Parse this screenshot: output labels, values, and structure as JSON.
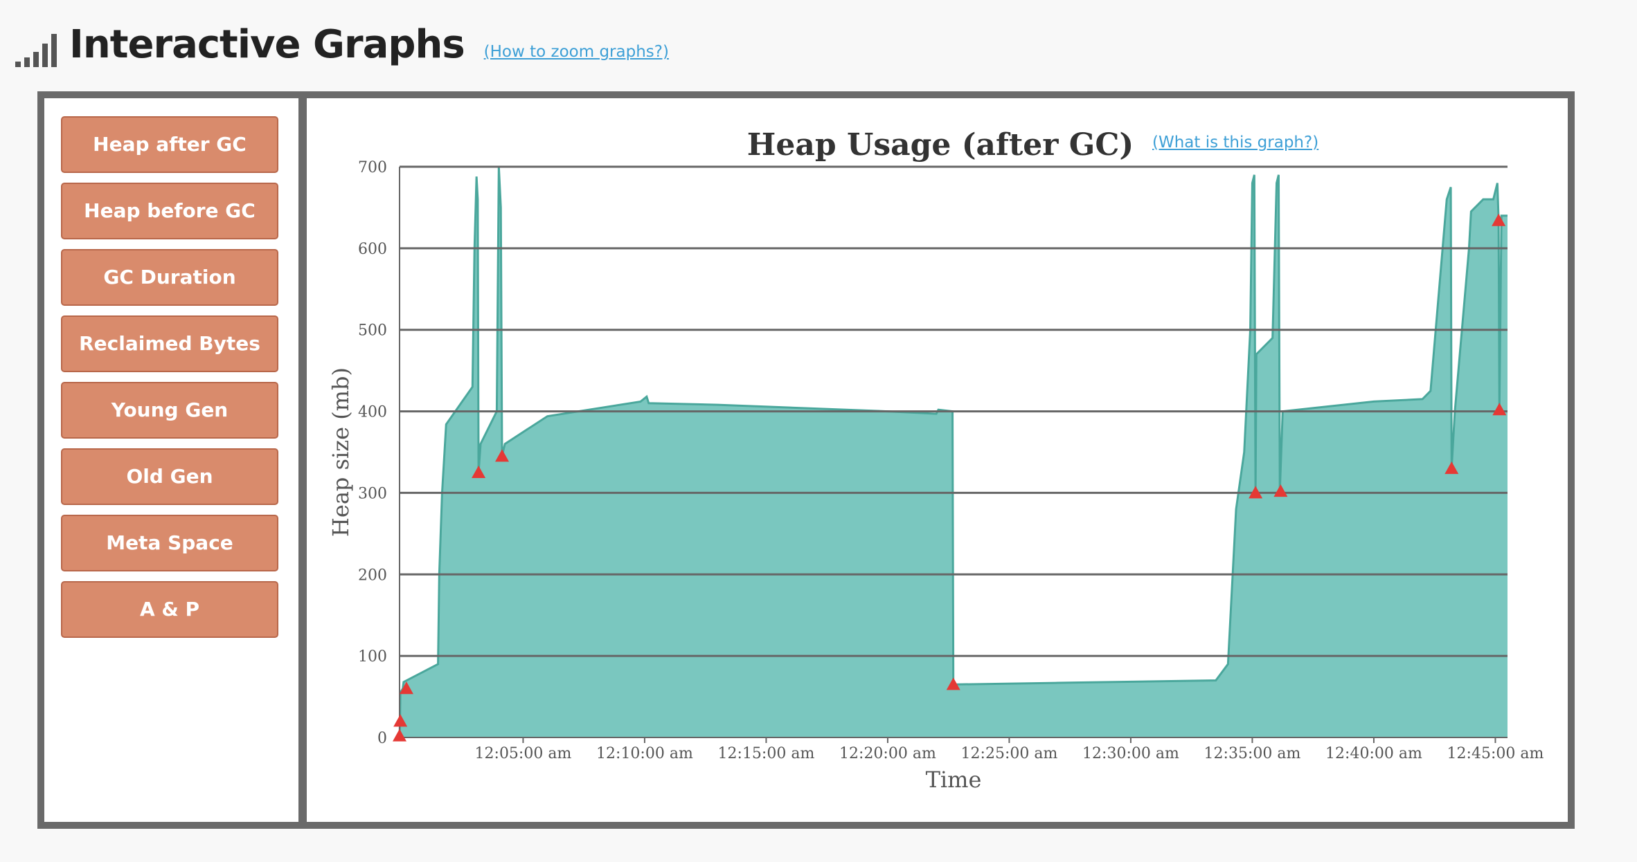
{
  "header": {
    "title": "Interactive Graphs",
    "zoom_link": "(How to zoom graphs?)"
  },
  "buttons": [
    {
      "label": "Heap after GC"
    },
    {
      "label": "Heap before GC"
    },
    {
      "label": "GC Duration"
    },
    {
      "label": "Reclaimed Bytes"
    },
    {
      "label": "Young Gen"
    },
    {
      "label": "Old Gen"
    },
    {
      "label": "Meta Space"
    },
    {
      "label": "A & P"
    }
  ],
  "chart": {
    "what_link": "(What is this graph?)"
  },
  "colors": {
    "area_fill": "#7ac7bf",
    "area_line": "#4aa79c",
    "marker": "#e53935",
    "button": "#d98b6c",
    "frame": "#6a6a6a",
    "link": "#3d9fd6"
  },
  "chart_data": {
    "type": "area",
    "title": "Heap Usage (after GC)",
    "xlabel": "Time",
    "ylabel": "Heap size (mb)",
    "ylim": [
      0,
      700
    ],
    "y_ticks": [
      0,
      100,
      200,
      300,
      400,
      500,
      600,
      700
    ],
    "x_tick_labels": [
      "12:05:00 am",
      "12:10:00 am",
      "12:15:00 am",
      "12:20:00 am",
      "12:25:00 am",
      "12:30:00 am",
      "12:35:00 am",
      "12:40:00 am",
      "12:45:00 am"
    ],
    "x_ticks": [
      "00:05:00",
      "00:10:00",
      "00:15:00",
      "00:20:00",
      "00:25:00",
      "00:30:00",
      "00:35:00",
      "00:40:00",
      "00:45:00"
    ],
    "xlim": [
      "23:59:55",
      "00:45:30"
    ],
    "grid": true,
    "series": [
      {
        "points": [
          [
            "23:59:55",
            0
          ],
          [
            "23:59:56",
            20
          ],
          [
            "23:59:57",
            55
          ],
          [
            "00:00:03",
            60
          ],
          [
            "00:00:05",
            68
          ],
          [
            "00:01:30",
            90
          ],
          [
            "00:01:33",
            200
          ],
          [
            "00:01:40",
            300
          ],
          [
            "00:01:50",
            384
          ],
          [
            "00:02:55",
            430
          ],
          [
            "00:03:00",
            600
          ],
          [
            "00:03:05",
            688
          ],
          [
            "00:03:08",
            660
          ],
          [
            "00:03:10",
            325
          ],
          [
            "00:03:15",
            360
          ],
          [
            "00:03:55",
            400
          ],
          [
            "00:04:00",
            700
          ],
          [
            "00:04:05",
            650
          ],
          [
            "00:04:08",
            345
          ],
          [
            "00:04:15",
            360
          ],
          [
            "00:06:00",
            394
          ],
          [
            "00:09:50",
            412
          ],
          [
            "00:10:05",
            418
          ],
          [
            "00:10:10",
            410
          ],
          [
            "00:13:00",
            408
          ],
          [
            "00:20:00",
            400
          ],
          [
            "00:22:00",
            397
          ],
          [
            "00:22:05",
            402
          ],
          [
            "00:22:40",
            400
          ],
          [
            "00:22:42",
            65
          ],
          [
            "00:27:00",
            67
          ],
          [
            "00:33:30",
            70
          ],
          [
            "00:34:00",
            90
          ],
          [
            "00:34:20",
            280
          ],
          [
            "00:34:40",
            350
          ],
          [
            "00:34:55",
            500
          ],
          [
            "00:35:00",
            680
          ],
          [
            "00:35:05",
            690
          ],
          [
            "00:35:08",
            300
          ],
          [
            "00:35:10",
            470
          ],
          [
            "00:35:50",
            490
          ],
          [
            "00:36:00",
            680
          ],
          [
            "00:36:05",
            690
          ],
          [
            "00:36:08",
            302
          ],
          [
            "00:36:15",
            400
          ],
          [
            "00:40:00",
            412
          ],
          [
            "00:42:00",
            415
          ],
          [
            "00:42:20",
            425
          ],
          [
            "00:43:00",
            660
          ],
          [
            "00:43:10",
            675
          ],
          [
            "00:43:12",
            330
          ],
          [
            "00:43:20",
            400
          ],
          [
            "00:43:55",
            600
          ],
          [
            "00:44:00",
            645
          ],
          [
            "00:44:30",
            660
          ],
          [
            "00:44:55",
            660
          ],
          [
            "00:45:05",
            680
          ],
          [
            "00:45:08",
            634
          ],
          [
            "00:45:10",
            402
          ],
          [
            "00:45:15",
            640
          ],
          [
            "00:45:30",
            640
          ]
        ]
      }
    ],
    "markers": [
      [
        "23:59:55",
        2
      ],
      [
        "23:59:57",
        20
      ],
      [
        "00:00:12",
        60
      ],
      [
        "00:03:10",
        325
      ],
      [
        "00:04:08",
        345
      ],
      [
        "00:22:42",
        65
      ],
      [
        "00:35:08",
        300
      ],
      [
        "00:36:10",
        302
      ],
      [
        "00:43:12",
        330
      ],
      [
        "00:45:08",
        634
      ],
      [
        "00:45:10",
        402
      ]
    ]
  }
}
